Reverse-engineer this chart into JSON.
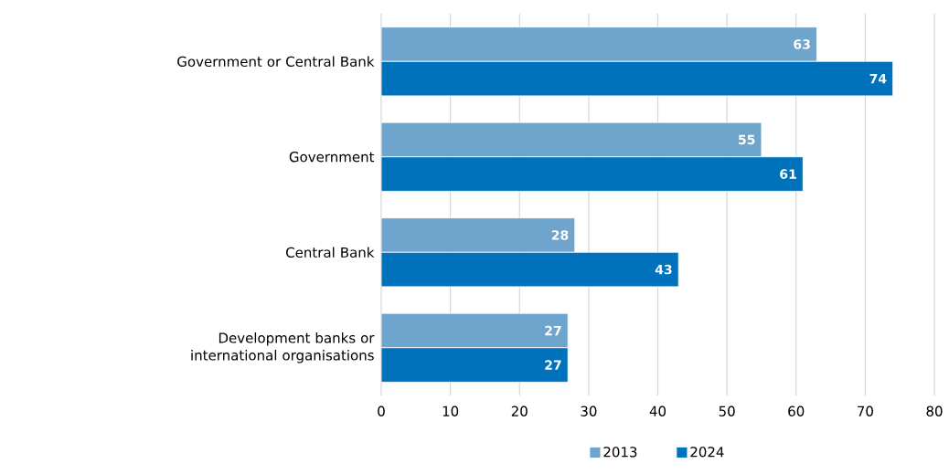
{
  "chart_data": {
    "type": "bar",
    "orientation": "horizontal",
    "categories": [
      "Government or Central Bank",
      "Government",
      "Central Bank",
      "Development banks or international organisations"
    ],
    "series": [
      {
        "name": "2013",
        "color": "#6fa5cd",
        "values": [
          63,
          55,
          28,
          27
        ]
      },
      {
        "name": "2024",
        "color": "#0072bb",
        "values": [
          74,
          61,
          43,
          27
        ]
      }
    ],
    "xlim": [
      0,
      80
    ],
    "xticks": [
      0,
      10,
      20,
      30,
      40,
      50,
      60,
      70,
      80
    ],
    "grid": "x",
    "legend": "bottom",
    "data_labels": true
  }
}
